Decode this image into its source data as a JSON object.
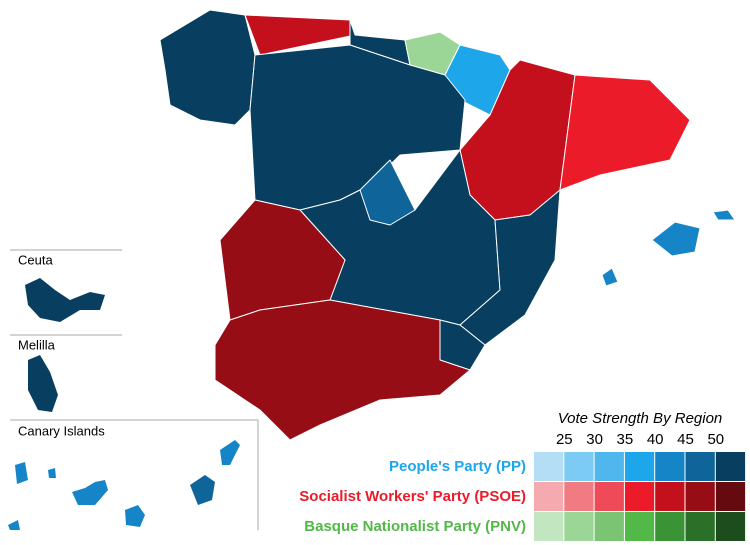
{
  "legend": {
    "title": "Vote Strength By Region",
    "scale": [
      "25",
      "30",
      "35",
      "40",
      "45",
      "50"
    ],
    "parties": [
      {
        "name": "People's Party (PP)",
        "color": "#1da6ea",
        "swatches": [
          "#b3def5",
          "#7ccbf5",
          "#4fb6ee",
          "#1da6ea",
          "#1585c8",
          "#0f649a",
          "#083f60"
        ]
      },
      {
        "name": "Socialist Workers' Party (PSOE)",
        "color": "#ec1b2a",
        "swatches": [
          "#f5aab0",
          "#f07b83",
          "#ef4a57",
          "#ec1b2a",
          "#c40f1c",
          "#960d16",
          "#650a0f"
        ]
      },
      {
        "name": "Basque Nationalist Party (PNV)",
        "color": "#52b848",
        "swatches": [
          "#c1e6c0",
          "#9bd697",
          "#7ac474",
          "#52b848",
          "#3a9435",
          "#2a7028",
          "#1d4d1c"
        ]
      }
    ]
  },
  "insets": [
    "Ceuta",
    "Melilla",
    "Canary Islands"
  ]
}
